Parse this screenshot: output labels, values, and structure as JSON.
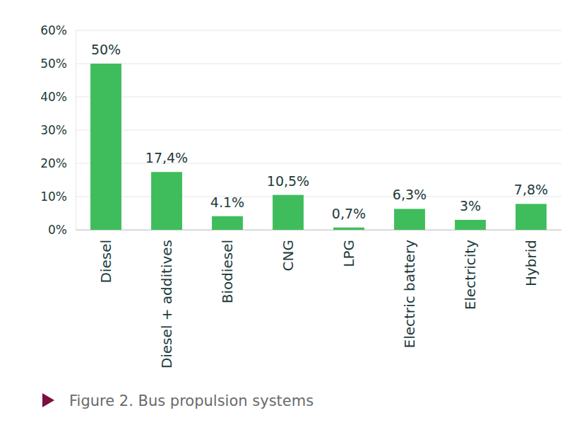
{
  "chart_data": {
    "type": "bar",
    "title": "Figure 2. Bus propulsion systems",
    "categories": [
      "Diesel",
      "Diesel + additives",
      "Biodiesel",
      "CNG",
      "LPG",
      "Electric battery",
      "Electricity",
      "Hybrid"
    ],
    "values": [
      50,
      17.4,
      4.1,
      10.5,
      0.7,
      6.3,
      3,
      7.8
    ],
    "value_labels": [
      "50%",
      "17,4%",
      "4.1%",
      "10,5%",
      "0,7%",
      "6,3%",
      "3%",
      "7,8%"
    ],
    "color": "#3fbd5c",
    "ylim": [
      0,
      60
    ],
    "yticks": [
      {
        "value": 0,
        "label": "0%"
      },
      {
        "value": 10,
        "label": "10%"
      },
      {
        "value": 20,
        "label": "20%"
      },
      {
        "value": 30,
        "label": "30%"
      },
      {
        "value": 40,
        "label": "40%"
      },
      {
        "value": 50,
        "label": "50%"
      },
      {
        "value": 60,
        "label": "60%"
      }
    ],
    "grid": true,
    "data_labels": true
  }
}
